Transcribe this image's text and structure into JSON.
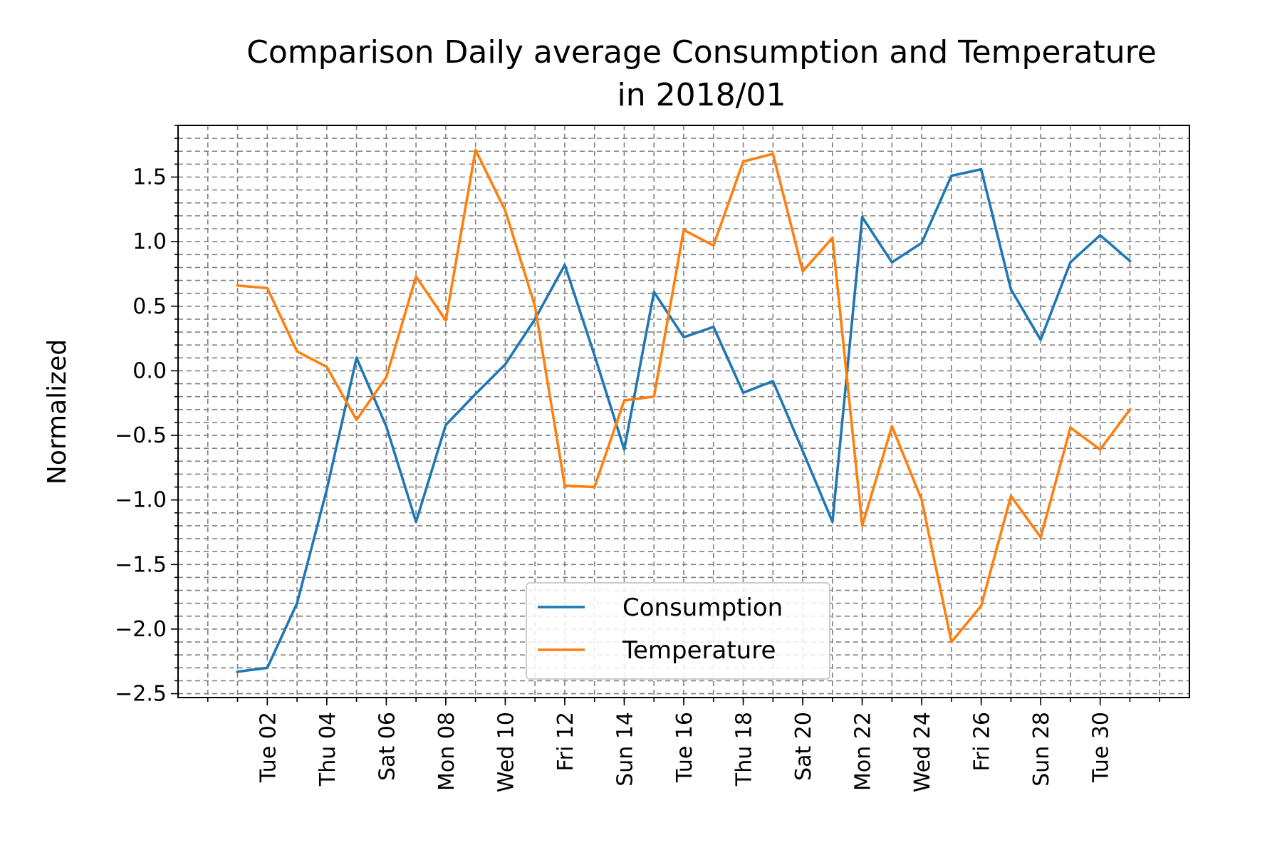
{
  "chart_data": {
    "type": "line",
    "title_line1": "Comparison Daily average Consumption and Temperature",
    "title_line2": "in 2018/01",
    "xlabel": "",
    "ylabel": "Normalized",
    "x": [
      "2018-01-01",
      "2018-01-02",
      "2018-01-03",
      "2018-01-04",
      "2018-01-05",
      "2018-01-06",
      "2018-01-07",
      "2018-01-08",
      "2018-01-09",
      "2018-01-10",
      "2018-01-11",
      "2018-01-12",
      "2018-01-13",
      "2018-01-14",
      "2018-01-15",
      "2018-01-16",
      "2018-01-17",
      "2018-01-18",
      "2018-01-19",
      "2018-01-20",
      "2018-01-21",
      "2018-01-22",
      "2018-01-23",
      "2018-01-24",
      "2018-01-25",
      "2018-01-26",
      "2018-01-27",
      "2018-01-28",
      "2018-01-29",
      "2018-01-30",
      "2018-01-31"
    ],
    "xlim": [
      "2017-12-30",
      "2018-02-02"
    ],
    "ylim": [
      -2.53,
      1.9
    ],
    "x_tick_labels": [
      "Tue 02",
      "Thu 04",
      "Sat 06",
      "Mon 08",
      "Wed 10",
      "Fri 12",
      "Sun 14",
      "Tue 16",
      "Thu 18",
      "Sat 20",
      "Mon 22",
      "Wed 24",
      "Fri 26",
      "Sun 28",
      "Tue 30"
    ],
    "x_tick_dates": [
      "2018-01-02",
      "2018-01-04",
      "2018-01-06",
      "2018-01-08",
      "2018-01-10",
      "2018-01-12",
      "2018-01-14",
      "2018-01-16",
      "2018-01-18",
      "2018-01-20",
      "2018-01-22",
      "2018-01-24",
      "2018-01-26",
      "2018-01-28",
      "2018-01-30"
    ],
    "y_ticks": [
      1.5,
      1.0,
      0.5,
      0.0,
      -0.5,
      -1.0,
      -1.5,
      -2.0,
      -2.5
    ],
    "y_tick_labels": [
      "1.5",
      "1.0",
      "0.5",
      "0.0",
      "−0.5",
      "−1.0",
      "−1.5",
      "−2.0",
      "−2.5"
    ],
    "grid": true,
    "legend_position": "bottom-center",
    "series": [
      {
        "name": "Consumption",
        "color": "#1f77b4",
        "values": [
          -2.33,
          -2.3,
          -1.8,
          -0.92,
          0.1,
          -0.43,
          -1.17,
          -0.42,
          -0.18,
          0.05,
          0.4,
          0.82,
          0.12,
          -0.61,
          0.61,
          0.26,
          0.34,
          -0.17,
          -0.08,
          -0.62,
          -1.17,
          1.19,
          0.84,
          0.99,
          1.51,
          1.56,
          0.63,
          0.24,
          0.84,
          1.05,
          0.85
        ]
      },
      {
        "name": "Temperature",
        "color": "#ff7f0e",
        "values": [
          0.66,
          0.64,
          0.15,
          0.03,
          -0.38,
          -0.05,
          0.73,
          0.39,
          1.71,
          1.24,
          0.5,
          -0.89,
          -0.9,
          -0.23,
          -0.2,
          1.09,
          0.97,
          1.62,
          1.68,
          0.77,
          1.03,
          -1.2,
          -0.43,
          -1.0,
          -2.1,
          -1.82,
          -0.97,
          -1.29,
          -0.44,
          -0.61,
          -0.3
        ]
      }
    ]
  }
}
